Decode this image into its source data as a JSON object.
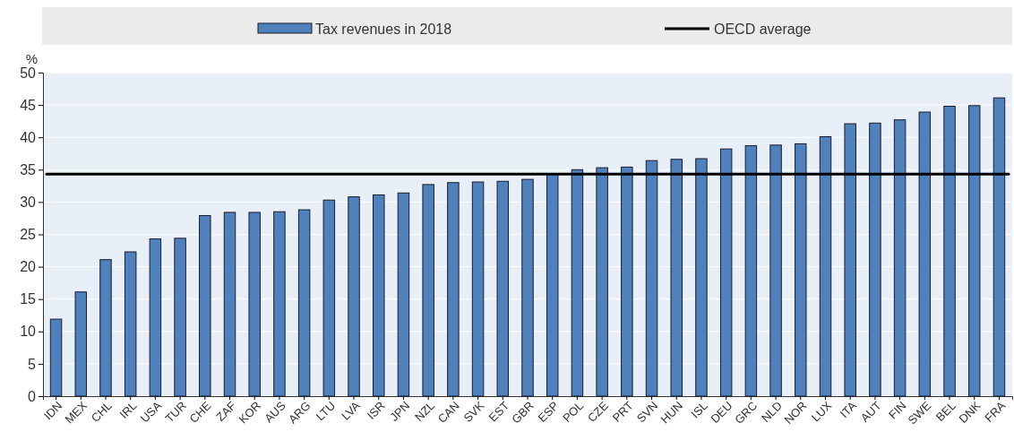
{
  "chart_data": {
    "type": "bar",
    "ylabel": "%",
    "categories": [
      "IDN",
      "MEX",
      "CHL",
      "IRL",
      "USA",
      "TUR",
      "CHE",
      "ZAF",
      "KOR",
      "AUS",
      "ARG",
      "LTU",
      "LVA",
      "ISR",
      "JPN",
      "NZL",
      "CAN",
      "SVK",
      "EST",
      "GBR",
      "ESP",
      "POL",
      "CZE",
      "PRT",
      "SVN",
      "HUN",
      "ISL",
      "DEU",
      "GRC",
      "NLD",
      "NOR",
      "LUX",
      "ITA",
      "AUT",
      "FIN",
      "SWE",
      "BEL",
      "DNK",
      "FRA"
    ],
    "series": [
      {
        "name": "Tax revenues in 2018",
        "color": "#4f81bd",
        "values": [
          11.9,
          16.1,
          21.1,
          22.3,
          24.3,
          24.4,
          27.9,
          28.4,
          28.4,
          28.5,
          28.8,
          30.3,
          30.8,
          31.1,
          31.4,
          32.7,
          33.0,
          33.1,
          33.2,
          33.5,
          34.4,
          35.0,
          35.3,
          35.4,
          36.4,
          36.6,
          36.7,
          38.2,
          38.7,
          38.8,
          39.0,
          40.1,
          42.1,
          42.2,
          42.7,
          43.9,
          44.8,
          44.9,
          46.1
        ]
      }
    ],
    "ref_lines": [
      {
        "axis": "y",
        "value": 34.3,
        "label": "OECD average",
        "color": "#000000",
        "line_style": "solid"
      }
    ],
    "ylim": [
      0,
      50
    ],
    "yticks": [
      0,
      5,
      10,
      15,
      20,
      25,
      30,
      35,
      40,
      45,
      50
    ],
    "grid": "y",
    "legend": "top"
  }
}
